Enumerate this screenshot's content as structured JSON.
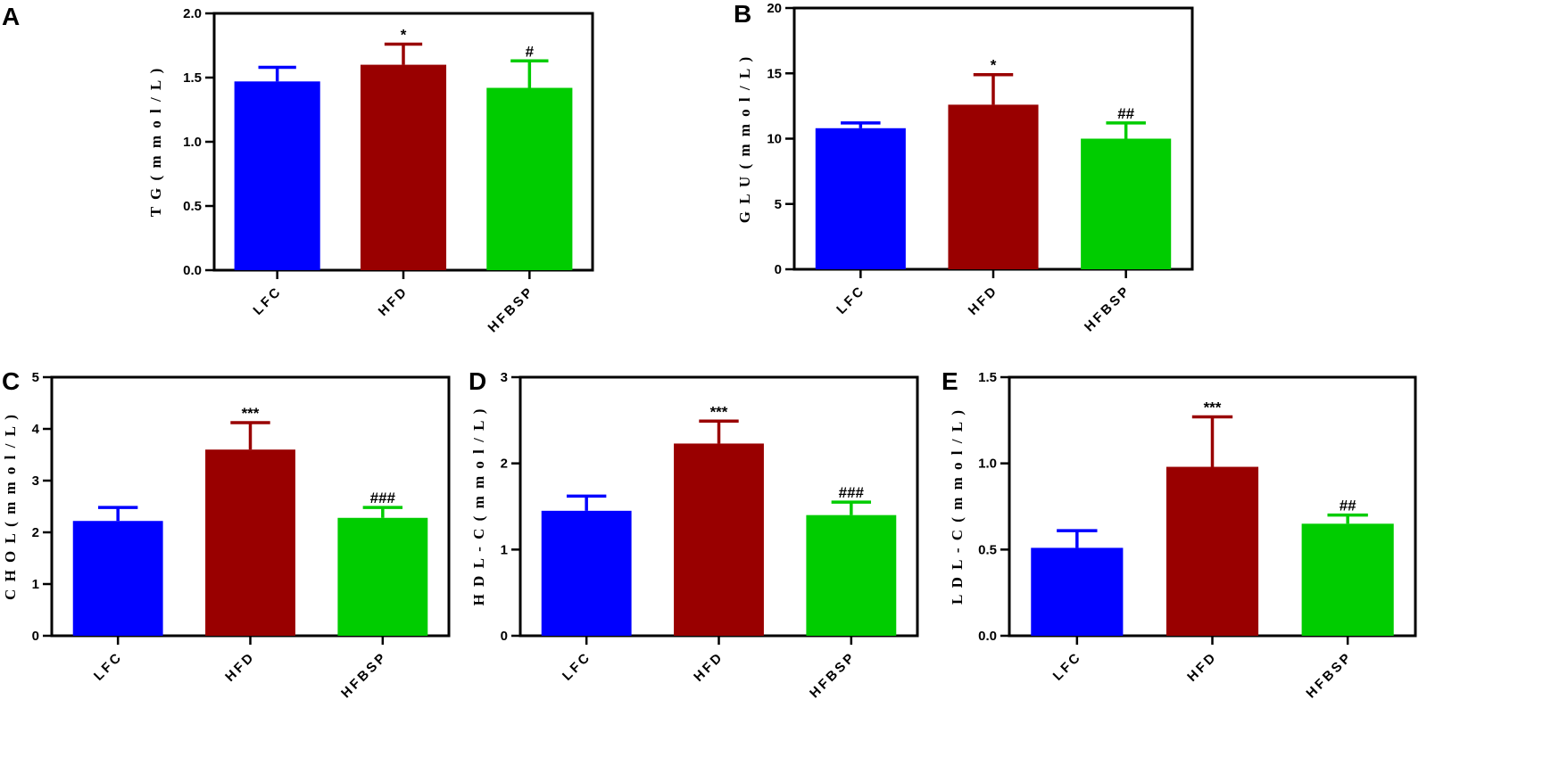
{
  "colors": {
    "LFC": "#0000FF",
    "HFD": "#990000",
    "HFBSP": "#00CC00",
    "axis": "#000000"
  },
  "chart_data": [
    {
      "panel": "A",
      "type": "bar",
      "categories": [
        "LFC",
        "HFD",
        "HFBSP"
      ],
      "values": [
        1.47,
        1.6,
        1.42
      ],
      "errors": [
        0.11,
        0.16,
        0.21
      ],
      "significance": [
        "",
        "*",
        "#"
      ],
      "ylabel": "T G ( m m o l / L )",
      "ylim": [
        0,
        2.0
      ],
      "yticks": [
        "0.0",
        "0.5",
        "1.0",
        "1.5",
        "2.0"
      ]
    },
    {
      "panel": "B",
      "type": "bar",
      "categories": [
        "LFC",
        "HFD",
        "HFBSP"
      ],
      "values": [
        10.8,
        12.6,
        10.0
      ],
      "errors": [
        0.4,
        2.3,
        1.2
      ],
      "significance": [
        "",
        "*",
        "##"
      ],
      "ylabel": "G L U ( m m o l / L )",
      "ylim": [
        0,
        20
      ],
      "yticks": [
        "0",
        "5",
        "10",
        "15",
        "20"
      ]
    },
    {
      "panel": "C",
      "type": "bar",
      "categories": [
        "LFC",
        "HFD",
        "HFBSP"
      ],
      "values": [
        2.22,
        3.6,
        2.28
      ],
      "errors": [
        0.26,
        0.52,
        0.2
      ],
      "significance": [
        "",
        "***",
        "###"
      ],
      "ylabel": "C H O L ( m m o l / L )",
      "ylim": [
        0,
        5
      ],
      "yticks": [
        "0",
        "1",
        "2",
        "3",
        "4",
        "5"
      ]
    },
    {
      "panel": "D",
      "type": "bar",
      "categories": [
        "LFC",
        "HFD",
        "HFBSP"
      ],
      "values": [
        1.45,
        2.23,
        1.4
      ],
      "errors": [
        0.17,
        0.26,
        0.15
      ],
      "significance": [
        "",
        "***",
        "###"
      ],
      "ylabel": "H D L - C ( m m o l / L )",
      "ylim": [
        0,
        3
      ],
      "yticks": [
        "0",
        "1",
        "2",
        "3"
      ]
    },
    {
      "panel": "E",
      "type": "bar",
      "categories": [
        "LFC",
        "HFD",
        "HFBSP"
      ],
      "values": [
        0.51,
        0.98,
        0.65
      ],
      "errors": [
        0.1,
        0.29,
        0.05
      ],
      "significance": [
        "",
        "***",
        "##"
      ],
      "ylabel": "L D L - C ( m m o l / L )",
      "ylim": [
        0,
        1.5
      ],
      "yticks": [
        "0.0",
        "0.5",
        "1.0",
        "1.5"
      ]
    }
  ]
}
